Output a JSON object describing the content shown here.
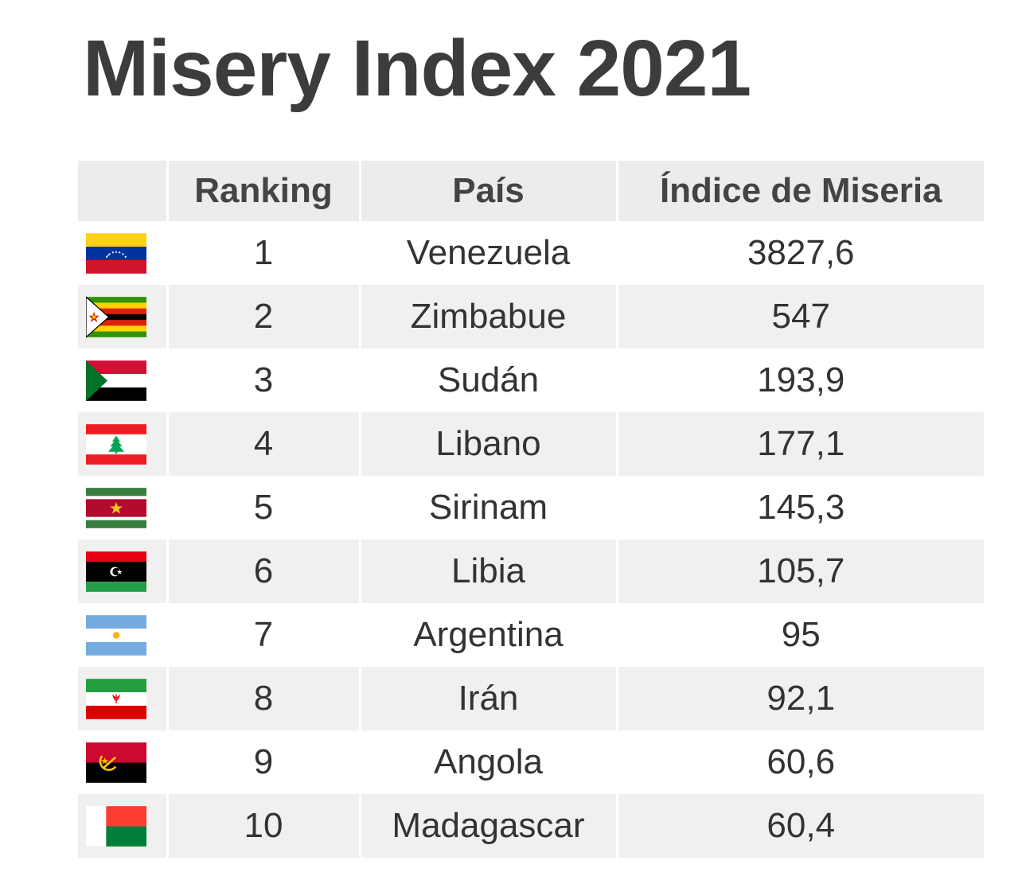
{
  "title": "Misery Index 2021",
  "chart_data": {
    "type": "table",
    "title": "Misery Index 2021",
    "columns": [
      "",
      "Ranking",
      "País",
      "Índice de Miseria"
    ],
    "rows": [
      {
        "rank": "1",
        "country": "Venezuela",
        "index": "3827,6",
        "flag_icon": "venezuela-flag-icon"
      },
      {
        "rank": "2",
        "country": "Zimbabue",
        "index": "547",
        "flag_icon": "zimbabwe-flag-icon"
      },
      {
        "rank": "3",
        "country": "Sudán",
        "index": "193,9",
        "flag_icon": "sudan-flag-icon"
      },
      {
        "rank": "4",
        "country": "Libano",
        "index": "177,1",
        "flag_icon": "lebanon-flag-icon"
      },
      {
        "rank": "5",
        "country": "Sirinam",
        "index": "145,3",
        "flag_icon": "suriname-flag-icon"
      },
      {
        "rank": "6",
        "country": "Libia",
        "index": "105,7",
        "flag_icon": "libya-flag-icon"
      },
      {
        "rank": "7",
        "country": "Argentina",
        "index": "95",
        "flag_icon": "argentina-flag-icon"
      },
      {
        "rank": "8",
        "country": "Irán",
        "index": "92,1",
        "flag_icon": "iran-flag-icon"
      },
      {
        "rank": "9",
        "country": "Angola",
        "index": "60,6",
        "flag_icon": "angola-flag-icon"
      },
      {
        "rank": "10",
        "country": "Madagascar",
        "index": "60,4",
        "flag_icon": "madagascar-flag-icon"
      }
    ]
  },
  "colors": {
    "title": "#3c3c3c",
    "header_bg": "#ececec",
    "row_alt_bg": "#f0f0f0"
  }
}
